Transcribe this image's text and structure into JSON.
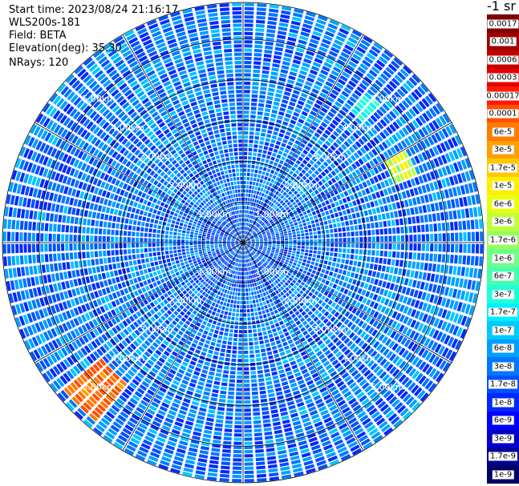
{
  "info": {
    "start_time": "Start time: 2023/08/24 21:16:17",
    "instrument": "WLS200s-181",
    "field": "Field: BETA",
    "elevation": "Elevation(deg): 35.30",
    "nrays": "NRays: 120"
  },
  "colorbar": {
    "title": "-1 sr",
    "entries": [
      {
        "label": "0.0017",
        "color": "#800000"
      },
      {
        "label": "0.001",
        "color": "#a00000"
      },
      {
        "label": "0.0006",
        "color": "#c40000"
      },
      {
        "label": "0.0003",
        "color": "#e60000"
      },
      {
        "label": "0.00017",
        "color": "#ff1a00"
      },
      {
        "label": "0.0001",
        "color": "#ff5000"
      },
      {
        "label": "6e-5",
        "color": "#ff7a00"
      },
      {
        "label": "3e-5",
        "color": "#ffa000"
      },
      {
        "label": "1.7e-5",
        "color": "#ffc800"
      },
      {
        "label": "1e-5",
        "color": "#ffee00"
      },
      {
        "label": "6e-6",
        "color": "#e8ff10"
      },
      {
        "label": "3e-6",
        "color": "#c0ff38"
      },
      {
        "label": "1.7e-6",
        "color": "#98ff60"
      },
      {
        "label": "1e-6",
        "color": "#70ff88"
      },
      {
        "label": "6e-7",
        "color": "#48ffb0"
      },
      {
        "label": "3e-7",
        "color": "#20ffd8"
      },
      {
        "label": "1.7e-7",
        "color": "#00f0ff"
      },
      {
        "label": "1e-7",
        "color": "#00c8ff"
      },
      {
        "label": "6e-8",
        "color": "#00a0ff"
      },
      {
        "label": "3e-8",
        "color": "#0078ff"
      },
      {
        "label": "1.7e-8",
        "color": "#0050ff"
      },
      {
        "label": "1e-8",
        "color": "#0028ff"
      },
      {
        "label": "6e-9",
        "color": "#0000ff"
      },
      {
        "label": "3e-9",
        "color": "#0000cc"
      },
      {
        "label": "1.7e-9",
        "color": "#000099"
      },
      {
        "label": "1e-9",
        "color": "#000066"
      }
    ]
  },
  "chart_data": {
    "type": "heatmap",
    "projection": "polar PPI",
    "title": "",
    "field": "BETA",
    "n_rays": 120,
    "elevation_deg": 35.3,
    "range_rings_km": [
      1.0,
      2.0,
      3.0,
      4.0,
      5.0
    ],
    "range_ring_labels": [
      "1.00km",
      "2.00km",
      "3.00km",
      "4.00km",
      "5.00km"
    ],
    "max_range_km": 5.9,
    "spoke_interval_deg": 30,
    "colorscale": "log jet",
    "value_range": [
      1e-09,
      0.0017
    ],
    "features": [
      {
        "description": "elevated backscatter arc",
        "azimuth_deg": [
          220,
          232
        ],
        "range_km": [
          4.5,
          5.7
        ],
        "value_range": [
          3e-05,
          0.0001
        ]
      },
      {
        "description": "light-green arc",
        "azimuth_deg": [
          60,
          70
        ],
        "range_km": [
          4.0,
          4.6
        ],
        "value_range": [
          1e-06,
          1e-05
        ]
      },
      {
        "description": "cyan patch",
        "azimuth_deg": [
          40,
          46
        ],
        "range_km": [
          4.2,
          4.8
        ],
        "value_range": [
          1e-07,
          6e-07
        ]
      }
    ],
    "background_value_range": [
      1e-08,
      1e-07
    ]
  }
}
